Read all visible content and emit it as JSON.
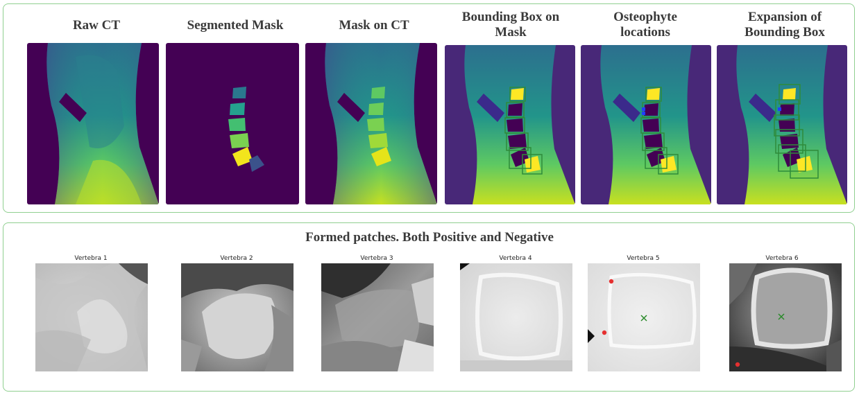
{
  "top": {
    "panels": [
      {
        "title": "Raw CT"
      },
      {
        "title": "Segmented Mask"
      },
      {
        "title": "Mask on CT"
      },
      {
        "title": "Bounding Box on Mask"
      },
      {
        "title": "Osteophyte locations"
      },
      {
        "title": "Expansion of Bounding Box"
      }
    ]
  },
  "bottom": {
    "title": "Formed patches. Both Positive and Negative",
    "patches": [
      {
        "label": "Vertebra 1"
      },
      {
        "label": "Vertebra 2"
      },
      {
        "label": "Vertebra 3"
      },
      {
        "label": "Vertebra 4"
      },
      {
        "label": "Vertebra 5"
      },
      {
        "label": "Vertebra 6"
      }
    ]
  },
  "colors": {
    "frame": "#8fcf8f",
    "viridis_dark": "#440154",
    "viridis_yellow": "#fde725",
    "box_green": "#2e8b3a",
    "osteophyte_red": "#e53030",
    "center_green": "#2a8a2a"
  }
}
